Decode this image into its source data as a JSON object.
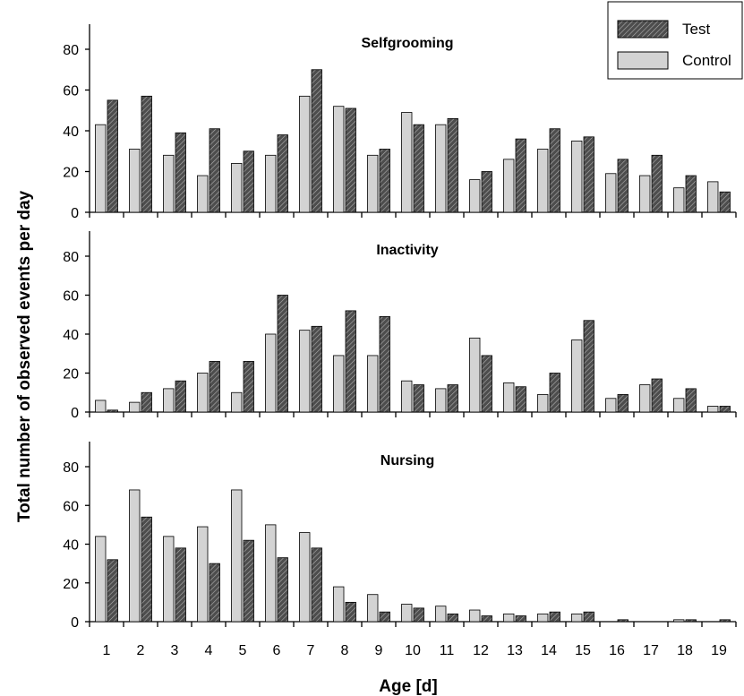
{
  "chart_data": {
    "type": "bar",
    "xlabel": "Age [d]",
    "ylabel": "Total number of observed events per day",
    "legend": {
      "position": "top-right",
      "entries": [
        {
          "name": "Test",
          "pattern": "hatched-dark"
        },
        {
          "name": "Control",
          "pattern": "light-gray"
        }
      ]
    },
    "categories": [
      "1",
      "2",
      "3",
      "4",
      "5",
      "6",
      "7",
      "8",
      "9",
      "10",
      "11",
      "12",
      "13",
      "14",
      "15",
      "16",
      "17",
      "18",
      "19"
    ],
    "ylim": [
      0,
      80
    ],
    "yticks": [
      "0",
      "20",
      "40",
      "60",
      "80"
    ],
    "colors": {
      "control": "#d3d3d3",
      "test_fill": "#4d4d4d",
      "test_hatch": "#b0b0b0"
    },
    "panels": [
      {
        "title": "Selfgrooming",
        "series": [
          {
            "name": "Control",
            "values": [
              43,
              31,
              28,
              18,
              24,
              28,
              57,
              52,
              28,
              49,
              43,
              16,
              26,
              31,
              35,
              19,
              18,
              12,
              15
            ]
          },
          {
            "name": "Test",
            "values": [
              55,
              57,
              39,
              41,
              30,
              38,
              70,
              51,
              31,
              43,
              46,
              20,
              36,
              41,
              37,
              26,
              28,
              18,
              10
            ]
          }
        ]
      },
      {
        "title": "Inactivity",
        "series": [
          {
            "name": "Control",
            "values": [
              6,
              5,
              12,
              20,
              10,
              40,
              42,
              29,
              29,
              16,
              12,
              38,
              15,
              9,
              37,
              7,
              14,
              7,
              3
            ]
          },
          {
            "name": "Test",
            "values": [
              1,
              10,
              16,
              26,
              26,
              60,
              44,
              52,
              49,
              14,
              14,
              29,
              13,
              20,
              47,
              9,
              17,
              12,
              3
            ]
          }
        ]
      },
      {
        "title": "Nursing",
        "series": [
          {
            "name": "Control",
            "values": [
              44,
              68,
              44,
              49,
              68,
              50,
              46,
              18,
              14,
              9,
              8,
              6,
              4,
              4,
              4,
              0,
              0,
              1,
              0
            ]
          },
          {
            "name": "Test",
            "values": [
              32,
              54,
              38,
              30,
              42,
              33,
              38,
              10,
              5,
              7,
              4,
              3,
              3,
              5,
              5,
              1,
              0,
              1,
              1
            ]
          }
        ]
      }
    ]
  }
}
